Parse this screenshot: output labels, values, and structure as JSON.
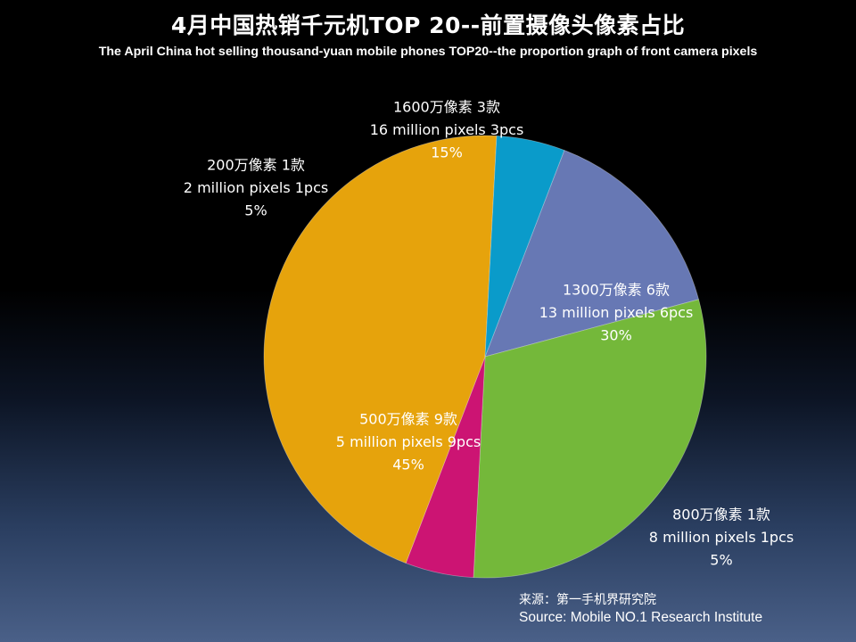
{
  "title": "4月中国热销千元机TOP 20--前置摄像头像素占比",
  "subtitle": "The April  China hot selling thousand-yuan mobile phones TOP20--the proportion graph of front camera pixels",
  "source": {
    "cn": "来源：第一手机界研究院",
    "en": "Source: Mobile NO.1 Research Institute"
  },
  "chart_data": {
    "type": "pie",
    "title": "4月中国热销千元机TOP 20--前置摄像头像素占比",
    "slices": [
      {
        "label_cn": "1600万像素 3款",
        "label_en": "16 million pixels 3pcs",
        "count": 3,
        "percent": 15,
        "percent_label": "15%",
        "color": "#6778b4"
      },
      {
        "label_cn": "1300万像素 6款",
        "label_en": "13 million pixels 6pcs",
        "count": 6,
        "percent": 30,
        "percent_label": "30%",
        "color": "#74b83a"
      },
      {
        "label_cn": "800万像素 1款",
        "label_en": "8 million pixels 1pcs",
        "count": 1,
        "percent": 5,
        "percent_label": "5%",
        "color": "#cc1473"
      },
      {
        "label_cn": "500万像素 9款",
        "label_en": "5 million pixels 9pcs",
        "count": 9,
        "percent": 45,
        "percent_label": "45%",
        "color": "#e6a30c"
      },
      {
        "label_cn": "200万像素 1款",
        "label_en": "2 million pixels 1pcs",
        "count": 1,
        "percent": 5,
        "percent_label": "5%",
        "color": "#0a9bca"
      }
    ],
    "label_color": "#ffffff"
  }
}
